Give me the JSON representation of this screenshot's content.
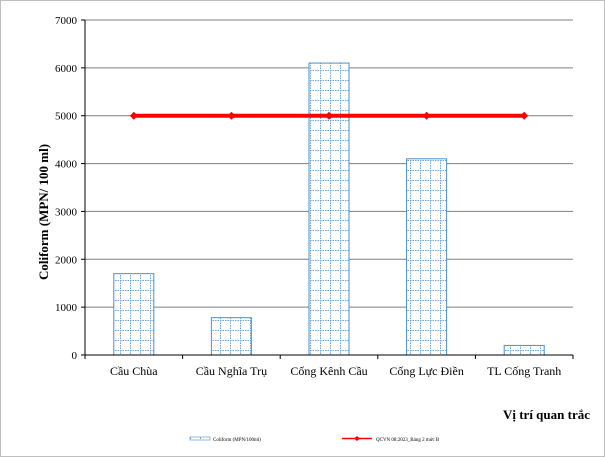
{
  "chart_data": {
    "type": "bar",
    "categories": [
      "Cầu Chùa",
      "Cầu Nghĩa Trụ",
      "Cống Kênh Cầu",
      "Cống Lực Điền",
      "TL Cống Tranh"
    ],
    "series": [
      {
        "name": "Coliform (MPN/100ml)",
        "type": "bar",
        "values": [
          1700,
          780,
          6100,
          4100,
          200
        ],
        "color": "#4a90c8"
      },
      {
        "name": "QCVN 08:2023_Bảng 2 mức B",
        "type": "line",
        "values": [
          5000,
          5000,
          5000,
          5000,
          5000
        ],
        "color": "#ff0000"
      }
    ],
    "xlabel": "Vị trí quan trắc",
    "ylabel": "Coliform (MPN/ 100 ml)",
    "ylim": [
      0,
      7000
    ],
    "yticks": [
      0,
      1000,
      2000,
      3000,
      4000,
      5000,
      6000,
      7000
    ],
    "grid": true,
    "legend": "bottom"
  }
}
